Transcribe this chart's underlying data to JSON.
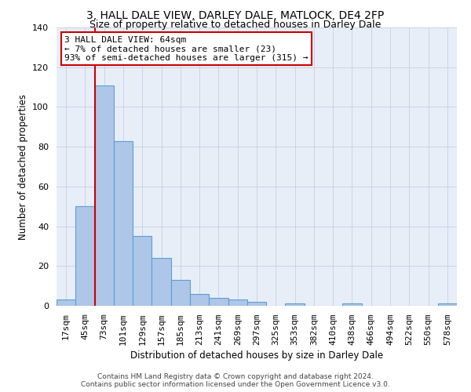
{
  "title": "3, HALL DALE VIEW, DARLEY DALE, MATLOCK, DE4 2FP",
  "subtitle": "Size of property relative to detached houses in Darley Dale",
  "xlabel": "Distribution of detached houses by size in Darley Dale",
  "ylabel": "Number of detached properties",
  "bin_labels": [
    "17sqm",
    "45sqm",
    "73sqm",
    "101sqm",
    "129sqm",
    "157sqm",
    "185sqm",
    "213sqm",
    "241sqm",
    "269sqm",
    "297sqm",
    "325sqm",
    "353sqm",
    "382sqm",
    "410sqm",
    "438sqm",
    "466sqm",
    "494sqm",
    "522sqm",
    "550sqm",
    "578sqm"
  ],
  "bar_heights": [
    3,
    50,
    111,
    83,
    35,
    24,
    13,
    6,
    4,
    3,
    2,
    0,
    1,
    0,
    0,
    1,
    0,
    0,
    0,
    0,
    1
  ],
  "bar_color": "#aec6e8",
  "bar_edge_color": "#5a9fd4",
  "background_color": "#e8eef7",
  "red_line_color": "#cc0000",
  "annotation_text": "3 HALL DALE VIEW: 64sqm\n← 7% of detached houses are smaller (23)\n93% of semi-detached houses are larger (315) →",
  "annotation_box_color": "white",
  "annotation_box_edge": "#cc0000",
  "ylim": [
    0,
    140
  ],
  "yticks": [
    0,
    20,
    40,
    60,
    80,
    100,
    120,
    140
  ],
  "footer_line1": "Contains HM Land Registry data © Crown copyright and database right 2024.",
  "footer_line2": "Contains public sector information licensed under the Open Government Licence v3.0.",
  "title_fontsize": 10,
  "subtitle_fontsize": 9,
  "axis_label_fontsize": 8.5,
  "tick_fontsize": 8,
  "annot_fontsize": 8
}
